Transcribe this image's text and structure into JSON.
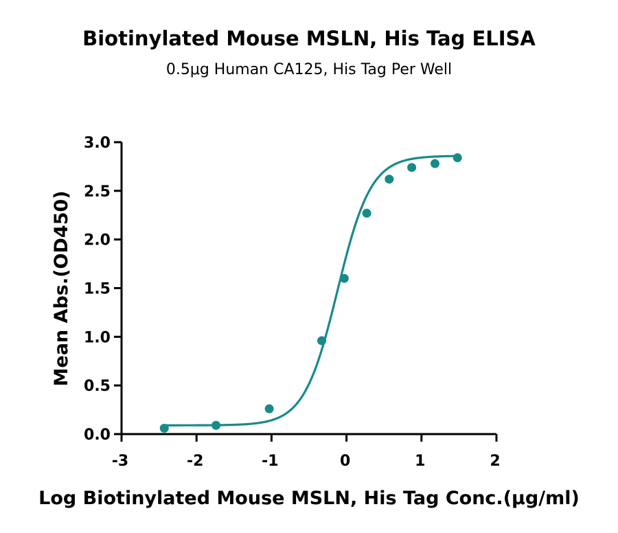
{
  "chart_data": {
    "type": "scatter",
    "title": "Biotinylated Mouse MSLN, His Tag ELISA",
    "subtitle": "0.5μg Human CA125, His Tag Per Well",
    "xlabel": "Log Biotinylated Mouse MSLN, His Tag Conc.(μg/ml)",
    "ylabel": "Mean Abs.(OD450)",
    "xlim": [
      -3,
      2
    ],
    "ylim": [
      0,
      3.0
    ],
    "xticks": [
      -3,
      -2,
      -1,
      0,
      1,
      2
    ],
    "xtick_labels": [
      "-3",
      "-2",
      "-1",
      "0",
      "1",
      "2"
    ],
    "yticks": [
      0,
      0.5,
      1.0,
      1.5,
      2.0,
      2.5,
      3.0
    ],
    "ytick_labels": [
      "0.0",
      "0.5",
      "1.0",
      "1.5",
      "2.0",
      "2.5",
      "3.0"
    ],
    "grid": false,
    "legend": "none",
    "color": "#178a8a",
    "points": {
      "x": [
        -2.43,
        -1.74,
        -1.03,
        -0.33,
        -0.03,
        0.27,
        0.57,
        0.87,
        1.18,
        1.48
      ],
      "y": [
        0.06,
        0.09,
        0.26,
        0.96,
        1.6,
        2.27,
        2.62,
        2.74,
        2.78,
        2.84
      ]
    },
    "fit_curve": {
      "model": "4PL",
      "bottom": 0.09,
      "top": 2.86,
      "log_ec50": -0.12,
      "hill_slope": 1.95,
      "x_range": [
        -2.43,
        1.48
      ]
    }
  }
}
